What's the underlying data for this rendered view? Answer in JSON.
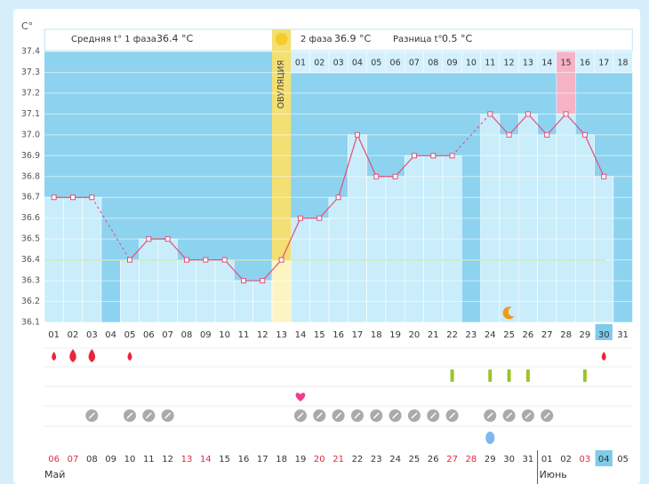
{
  "header": {
    "unit": "C°",
    "phase1_label": "Средняя t° 1 фаза",
    "phase1_value": "36.4 °C",
    "phase2_label": "2 фаза",
    "phase2_value": "36.9 °C",
    "diff_label": "Разница t°",
    "diff_value": "0.5 °C",
    "ovulation_label": "ОВУЛЯЦИЯ"
  },
  "chart_data": {
    "type": "line",
    "categories": [
      "01",
      "02",
      "03",
      "04",
      "05",
      "06",
      "07",
      "08",
      "09",
      "10",
      "11",
      "12",
      "13",
      "14",
      "15",
      "16",
      "17",
      "18",
      "19",
      "20",
      "21",
      "22",
      "23",
      "24",
      "25",
      "26",
      "27",
      "28",
      "29",
      "30",
      "31"
    ],
    "values": [
      36.7,
      36.7,
      36.7,
      null,
      36.4,
      36.5,
      36.5,
      36.4,
      36.4,
      36.4,
      36.3,
      36.3,
      36.4,
      36.6,
      36.6,
      36.7,
      37.0,
      36.8,
      36.8,
      36.9,
      36.9,
      36.9,
      null,
      37.1,
      37.0,
      37.1,
      37.0,
      37.1,
      37.0,
      36.8,
      null
    ],
    "color": "#e0507a",
    "phase2_days": [
      "01",
      "02",
      "03",
      "04",
      "05",
      "06",
      "07",
      "08",
      "09",
      "10",
      "11",
      "12",
      "13",
      "14",
      "15",
      "16",
      "17",
      "18"
    ],
    "phase2_highlight": "15",
    "ovulation_day": "13",
    "highlight_day": "30",
    "cover_line": 36.4,
    "ylim": [
      36.1,
      37.4
    ],
    "yticks": [
      36.1,
      36.2,
      36.3,
      36.4,
      36.5,
      36.6,
      36.7,
      36.8,
      36.9,
      {
        "value": 37,
        "label": "37.0"
      },
      37.1,
      37.2,
      37.3,
      37.4
    ],
    "grid": true
  },
  "symbols": {
    "bleeding": [
      {
        "day": "01",
        "size": "small"
      },
      {
        "day": "02",
        "size": "large"
      },
      {
        "day": "03",
        "size": "large"
      },
      {
        "day": "05",
        "size": "small"
      },
      {
        "day": "30",
        "size": "small"
      }
    ],
    "green": [
      "22",
      "24",
      "25",
      "26",
      "29"
    ],
    "heart": [
      "14"
    ],
    "gray": [
      "03",
      "05",
      "06",
      "07",
      "14",
      "15",
      "16",
      "17",
      "18",
      "19",
      "20",
      "21",
      "22",
      "24",
      "25",
      "26",
      "27"
    ],
    "blue_drop": [
      "24"
    ],
    "moon": [
      "25"
    ]
  },
  "dates": {
    "days": [
      "06",
      "07",
      "08",
      "09",
      "10",
      "11",
      "12",
      "13",
      "14",
      "15",
      "16",
      "17",
      "18",
      "19",
      "20",
      "21",
      "22",
      "23",
      "24",
      "25",
      "26",
      "27",
      "28",
      "29",
      "30",
      "31",
      "01",
      "02",
      "03",
      "04",
      "05"
    ],
    "red": [
      "06",
      "07",
      "13",
      "14",
      "20",
      "21",
      "27",
      "28",
      "03"
    ],
    "highlight": "04",
    "months": [
      {
        "label": "Май",
        "day": "06"
      },
      {
        "label": "Июнь",
        "day": "01"
      }
    ]
  }
}
